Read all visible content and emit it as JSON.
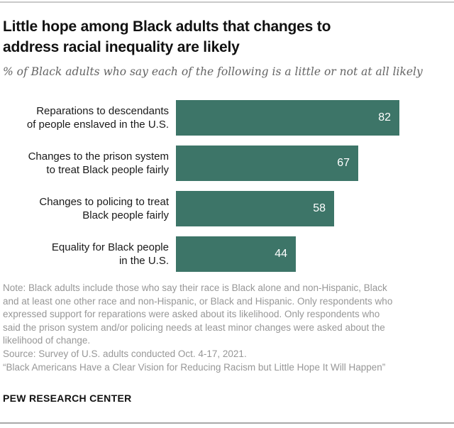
{
  "header": {
    "title_lines": [
      "Little hope among Black adults that changes to",
      "address racial inequality are likely"
    ],
    "subtitle": "% of Black adults who say each of the following is a little or not at all likely"
  },
  "chart_data": {
    "type": "bar",
    "orientation": "horizontal",
    "title": "Little hope among Black adults that changes to address racial inequality are likely",
    "subtitle": "% of Black adults who say each of the following is a little or not at all likely",
    "unit": "%",
    "bar_color": "#3d7568",
    "value_label_color": "#ffffff",
    "xlim": [
      0,
      100
    ],
    "grid": false,
    "legend": "none",
    "categories": [
      "Reparations to descendants of people enslaved in the U.S.",
      "Changes to the prison system to treat Black people fairly",
      "Changes to policing to treat Black people fairly",
      "Equality for Black people in the U.S."
    ],
    "values": [
      82,
      67,
      58,
      44
    ],
    "rows": [
      {
        "label_lines": [
          "Reparations to descendants",
          "of people enslaved in the U.S."
        ],
        "value": 82
      },
      {
        "label_lines": [
          "Changes to the prison system",
          "to treat Black people fairly"
        ],
        "value": 67
      },
      {
        "label_lines": [
          "Changes to policing to treat",
          "Black people fairly"
        ],
        "value": 58
      },
      {
        "label_lines": [
          "Equality for Black people",
          "in the U.S."
        ],
        "value": 44
      }
    ]
  },
  "footer": {
    "note_lines": [
      "Note: Black adults include those who say their race is Black alone and non-Hispanic, Black",
      "and at least one other race and non-Hispanic, or Black and Hispanic. Only respondents who",
      "expressed support for reparations were asked about its likelihood. Only respondents who",
      "said the prison system and/or policing needs at least minor changes were asked about the",
      "likelihood of change.",
      "Source: Survey of U.S. adults conducted Oct. 4-17, 2021.",
      "“Black Americans Have a Clear Vision for Reducing Racism but Little Hope It Will Happen”"
    ],
    "brand": "PEW RESEARCH CENTER"
  }
}
